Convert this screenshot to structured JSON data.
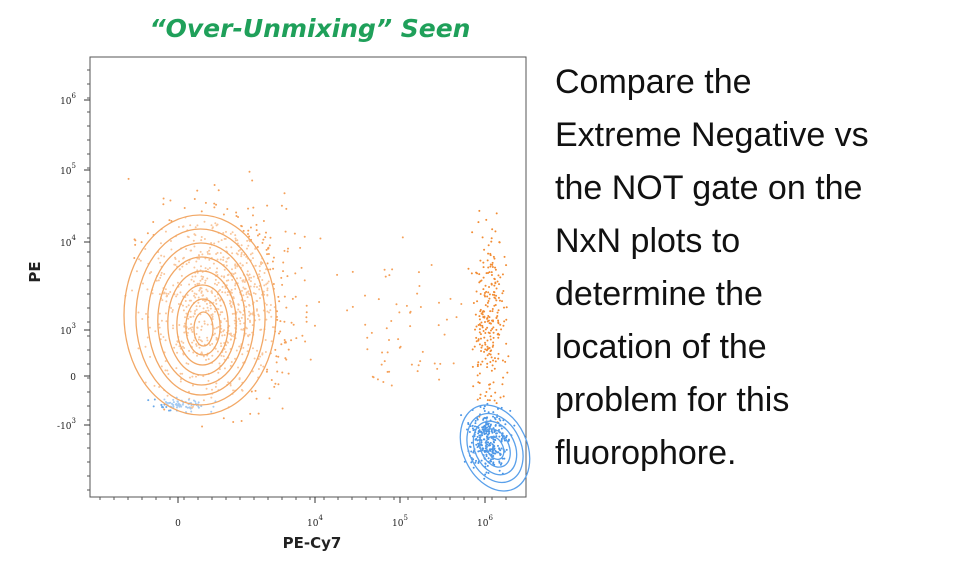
{
  "title": "“Over-Unmixing” Seen",
  "plot": {
    "x_label": "PE-Cy7",
    "y_label": "PE",
    "y_ticks": [
      {
        "base": "10",
        "exp": "6"
      },
      {
        "base": "10",
        "exp": "5"
      },
      {
        "base": "10",
        "exp": "4"
      },
      {
        "base": "10",
        "exp": "3"
      },
      {
        "base": "0"
      },
      {
        "base": "-10",
        "exp": "3"
      }
    ],
    "x_ticks": [
      {
        "base": "0"
      },
      {
        "base": "10",
        "exp": "4"
      },
      {
        "base": "10",
        "exp": "5"
      },
      {
        "base": "10",
        "exp": "6"
      }
    ]
  },
  "body_lines": [
    "Compare the",
    "Extreme Negative vs",
    "the NOT gate on the",
    "NxN plots to",
    "determine the",
    "location of the",
    "problem for this",
    "fluorophore."
  ]
}
